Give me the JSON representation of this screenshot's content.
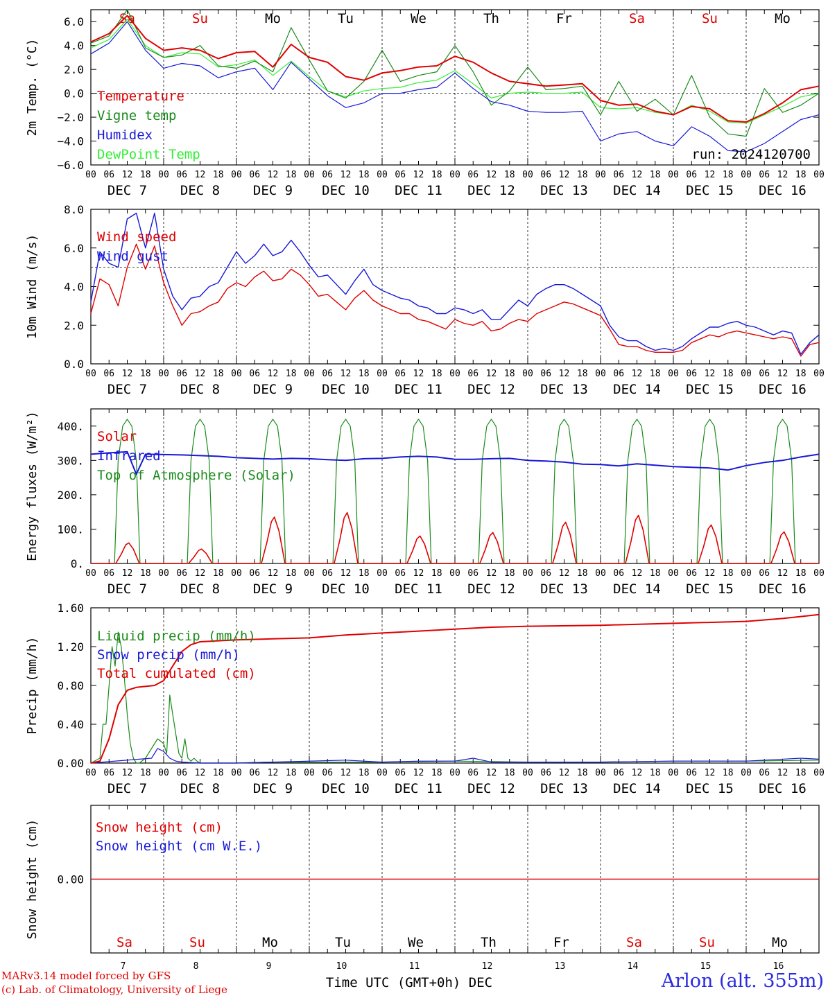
{
  "run_label": "run: 2024120700",
  "x_label": "Time UTC (GMT+0h)",
  "x_label_suffix": "DEC",
  "credits": [
    "MARv3.14 model forced by GFS",
    "(c) Lab. of Climatology, University of Liege"
  ],
  "station": "Arlon (alt. 355m)",
  "colors": {
    "red": "#e00000",
    "green": "#1a8a1a",
    "blue": "#1818d8",
    "lightgreen": "#33ee33",
    "weekend": "#e00000",
    "weekday": "#000000"
  },
  "chart_data": [
    {
      "type": "line",
      "ylabel": "2m Temp. (°C)",
      "ylim": [
        -6,
        7
      ],
      "yticks": [
        "6.0",
        "4.0",
        "2.0",
        "0.0",
        "−2.0",
        "−4.0",
        "−6.0"
      ],
      "yticks_values": [
        6,
        4,
        2,
        0,
        -2,
        -4,
        -6
      ],
      "ref_line": 0,
      "hour_ticks": [
        "00",
        "06",
        "12",
        "18",
        "00",
        "06",
        "12",
        "18",
        "00",
        "06",
        "12",
        "18",
        "00",
        "06",
        "12",
        "18",
        "00",
        "06",
        "12",
        "18",
        "00",
        "06",
        "12",
        "18",
        "00",
        "06",
        "12",
        "18",
        "00",
        "06",
        "12",
        "18",
        "00",
        "06",
        "12",
        "18",
        "00",
        "06",
        "12",
        "18",
        "00"
      ],
      "date_labels": [
        "DEC 7",
        "DEC 8",
        "DEC 9",
        "DEC 10",
        "DEC 11",
        "DEC 12",
        "DEC 13",
        "DEC 14",
        "DEC 15",
        "DEC 16"
      ],
      "day_names": [
        "Sa",
        "Su",
        "Mo",
        "Tu",
        "We",
        "Th",
        "Fr",
        "Sa",
        "Su",
        "Mo"
      ],
      "weekend": [
        true,
        true,
        false,
        false,
        false,
        false,
        false,
        true,
        true,
        false
      ],
      "x_hours": [
        0,
        6,
        12,
        18,
        24,
        30,
        36,
        42,
        48,
        54,
        60,
        66,
        72,
        78,
        84,
        90,
        96,
        102,
        108,
        114,
        120,
        126,
        132,
        138,
        144,
        150,
        156,
        162,
        168,
        174,
        180,
        186,
        192,
        198,
        204,
        210,
        216,
        222,
        228,
        234,
        240
      ],
      "series": [
        {
          "name": "Temperature",
          "color": "red",
          "values": [
            4.3,
            5.0,
            6.5,
            4.6,
            3.6,
            3.8,
            3.6,
            2.9,
            3.4,
            3.5,
            2.2,
            4.1,
            3.0,
            2.6,
            1.4,
            1.1,
            1.7,
            1.9,
            2.2,
            2.3,
            3.1,
            2.6,
            1.7,
            1.0,
            0.8,
            0.6,
            0.7,
            0.8,
            -0.6,
            -1.0,
            -0.9,
            -1.5,
            -1.8,
            -1.1,
            -1.3,
            -2.3,
            -2.4,
            -1.7,
            -0.8,
            0.3,
            0.6
          ]
        },
        {
          "name": "Vigne temp",
          "color": "green",
          "values": [
            4.2,
            4.8,
            7.0,
            3.8,
            3.0,
            3.2,
            4.0,
            2.3,
            2.1,
            2.7,
            1.8,
            5.5,
            2.8,
            0.2,
            -0.4,
            1.0,
            3.6,
            1.0,
            1.5,
            1.8,
            4.0,
            1.8,
            -1.0,
            0.2,
            2.2,
            0.3,
            0.4,
            0.6,
            -1.8,
            1.0,
            -1.5,
            -0.5,
            -1.8,
            1.5,
            -2.0,
            -3.4,
            -3.6,
            0.4,
            -1.6,
            -1.0,
            0.0
          ]
        },
        {
          "name": "Humidex",
          "color": "blue",
          "values": [
            3.3,
            4.2,
            6.0,
            3.6,
            2.1,
            2.5,
            2.3,
            1.3,
            1.8,
            2.1,
            0.3,
            2.6,
            1.2,
            -0.2,
            -1.2,
            -0.8,
            0.0,
            0.0,
            0.3,
            0.5,
            1.7,
            0.4,
            -0.7,
            -1.0,
            -1.5,
            -1.6,
            -1.6,
            -1.5,
            -4.0,
            -3.4,
            -3.2,
            -4.0,
            -4.4,
            -2.8,
            -3.6,
            -4.8,
            -4.9,
            -4.2,
            -3.2,
            -2.2,
            -1.8
          ]
        },
        {
          "name": "DewPoint Temp",
          "color": "lightgreen",
          "values": [
            3.8,
            4.5,
            6.2,
            4.0,
            3.0,
            3.4,
            3.3,
            2.2,
            2.4,
            2.8,
            1.5,
            2.7,
            1.4,
            0.2,
            -0.3,
            0.2,
            0.4,
            0.5,
            0.9,
            1.1,
            1.9,
            0.8,
            -0.4,
            0.0,
            0.1,
            0.0,
            0.0,
            0.1,
            -1.2,
            -1.3,
            -1.2,
            -1.6,
            -1.8,
            -1.0,
            -1.5,
            -2.4,
            -2.5,
            -1.8,
            -1.1,
            -0.3,
            0.0
          ]
        }
      ]
    },
    {
      "type": "line",
      "ylabel": "10m Wind (m/s)",
      "ylim": [
        0,
        8
      ],
      "yticks": [
        "8.0",
        "6.0",
        "4.0",
        "2.0",
        "0.0"
      ],
      "yticks_values": [
        8,
        6,
        4,
        2,
        0
      ],
      "ref_line": 5,
      "x_hours": [
        0,
        3,
        6,
        9,
        12,
        15,
        18,
        21,
        24,
        27,
        30,
        33,
        36,
        39,
        42,
        45,
        48,
        51,
        54,
        57,
        60,
        63,
        66,
        69,
        72,
        75,
        78,
        81,
        84,
        87,
        90,
        93,
        96,
        99,
        102,
        105,
        108,
        111,
        114,
        117,
        120,
        123,
        126,
        129,
        132,
        135,
        138,
        141,
        144,
        147,
        150,
        153,
        156,
        159,
        162,
        165,
        168,
        171,
        174,
        177,
        180,
        183,
        186,
        189,
        192,
        195,
        198,
        201,
        204,
        207,
        210,
        213,
        216,
        219,
        222,
        225,
        228,
        231,
        234,
        237,
        240
      ],
      "series": [
        {
          "name": "Wind speed",
          "color": "red",
          "values": [
            2.6,
            4.4,
            4.1,
            3.0,
            5.0,
            6.2,
            4.9,
            6.1,
            4.2,
            3.0,
            2.0,
            2.6,
            2.7,
            3.0,
            3.2,
            3.9,
            4.2,
            4.0,
            4.5,
            4.8,
            4.3,
            4.4,
            4.9,
            4.6,
            4.1,
            3.5,
            3.6,
            3.2,
            2.8,
            3.4,
            3.8,
            3.3,
            3.0,
            2.8,
            2.6,
            2.6,
            2.3,
            2.2,
            2.0,
            1.8,
            2.3,
            2.1,
            2.0,
            2.2,
            1.7,
            1.8,
            2.1,
            2.3,
            2.2,
            2.6,
            2.8,
            3.0,
            3.2,
            3.1,
            2.9,
            2.7,
            2.5,
            1.8,
            1.0,
            0.9,
            0.9,
            0.7,
            0.6,
            0.6,
            0.6,
            0.7,
            1.1,
            1.3,
            1.5,
            1.4,
            1.6,
            1.7,
            1.6,
            1.5,
            1.4,
            1.3,
            1.4,
            1.3,
            0.4,
            1.0,
            1.1
          ]
        },
        {
          "name": "Wind gust",
          "color": "blue",
          "values": [
            3.2,
            5.8,
            5.2,
            5.0,
            7.5,
            7.8,
            6.0,
            7.8,
            4.9,
            3.5,
            2.8,
            3.4,
            3.5,
            4.0,
            4.2,
            5.0,
            5.8,
            5.2,
            5.6,
            6.2,
            5.6,
            5.8,
            6.4,
            5.8,
            5.1,
            4.5,
            4.6,
            4.1,
            3.6,
            4.3,
            4.9,
            4.1,
            3.8,
            3.6,
            3.4,
            3.3,
            3.0,
            2.9,
            2.6,
            2.6,
            2.9,
            2.8,
            2.6,
            2.8,
            2.3,
            2.3,
            2.8,
            3.3,
            3.0,
            3.6,
            3.9,
            4.1,
            4.1,
            3.9,
            3.6,
            3.3,
            3.0,
            2.0,
            1.4,
            1.2,
            1.2,
            0.9,
            0.7,
            0.8,
            0.7,
            0.9,
            1.3,
            1.6,
            1.9,
            1.9,
            2.1,
            2.2,
            2.0,
            1.9,
            1.7,
            1.5,
            1.7,
            1.6,
            0.5,
            1.1,
            1.5
          ]
        }
      ]
    },
    {
      "type": "line",
      "ylabel": "Energy fluxes (W/m²)",
      "ylim": [
        0,
        450
      ],
      "yticks": [
        "400.",
        "300.",
        "200.",
        "100.",
        "0."
      ],
      "yticks_values": [
        400,
        300,
        200,
        100,
        0
      ],
      "ref_line": null,
      "solar_peaks": [
        60,
        42,
        135,
        148,
        80,
        90,
        120,
        140,
        112,
        92
      ],
      "toa_peak": 420,
      "series": [
        {
          "name": "Solar",
          "color": "red",
          "values": [
            60,
            42,
            135,
            148,
            80,
            90,
            120,
            140,
            112,
            92
          ]
        },
        {
          "name": "Infrared",
          "color": "blue",
          "x_hours": [
            0,
            6,
            12,
            15,
            18,
            24,
            30,
            36,
            42,
            48,
            54,
            60,
            66,
            72,
            78,
            84,
            90,
            96,
            102,
            108,
            114,
            120,
            126,
            132,
            138,
            144,
            150,
            156,
            162,
            168,
            174,
            180,
            186,
            192,
            198,
            204,
            210,
            216,
            222,
            228,
            234,
            240
          ],
          "values": [
            318,
            322,
            325,
            260,
            318,
            317,
            316,
            314,
            312,
            308,
            306,
            304,
            306,
            305,
            302,
            300,
            305,
            306,
            310,
            312,
            310,
            303,
            303,
            305,
            306,
            300,
            298,
            295,
            289,
            288,
            284,
            290,
            286,
            282,
            280,
            278,
            272,
            285,
            294,
            300,
            310,
            318
          ]
        },
        {
          "name": "Top of Atmosphere (Solar)",
          "color": "green",
          "values": [
            420,
            420,
            420,
            420,
            420,
            420,
            420,
            420,
            420,
            420
          ]
        }
      ]
    },
    {
      "type": "line",
      "ylabel": "Precip (mm/h)",
      "ylim": [
        0,
        1.6
      ],
      "yticks": [
        "1.60",
        "1.20",
        "0.80",
        "0.40",
        "0.00"
      ],
      "yticks_values": [
        1.6,
        1.2,
        0.8,
        0.4,
        0
      ],
      "ref_line": null,
      "series": [
        {
          "name": "Liquid precip (mm/h)",
          "color": "green",
          "x_hours": [
            0,
            3,
            4,
            5,
            6,
            7,
            8,
            9,
            10,
            11,
            12,
            13,
            14,
            15,
            16,
            18,
            20,
            22,
            24,
            25,
            26,
            27,
            28,
            29,
            30,
            31,
            32,
            33,
            34,
            35,
            36,
            37,
            38,
            40,
            42,
            44,
            48,
            60,
            72,
            96,
            120,
            144,
            168,
            192,
            216,
            240
          ],
          "values": [
            0,
            0.05,
            0.4,
            0.4,
            0.8,
            1.2,
            1.0,
            1.35,
            1.2,
            0.9,
            0.5,
            0.2,
            0.05,
            0,
            0,
            0.05,
            0.15,
            0.25,
            0.2,
            0.1,
            0.7,
            0.5,
            0.3,
            0.1,
            0.05,
            0.25,
            0.05,
            0.02,
            0.05,
            0.02,
            0,
            0,
            0,
            0,
            0,
            0,
            0,
            0.01,
            0.01,
            0.01,
            0.02,
            0.01,
            0.01,
            0.02,
            0.02,
            0.03
          ]
        },
        {
          "name": "Snow precip (mm/h)",
          "color": "blue",
          "x_hours": [
            0,
            20,
            22,
            24,
            26,
            28,
            30,
            36,
            48,
            60,
            84,
            96,
            108,
            120,
            126,
            132,
            144,
            168,
            192,
            216,
            234,
            240
          ],
          "values": [
            0,
            0.05,
            0.15,
            0.12,
            0.05,
            0.02,
            0.01,
            0,
            0,
            0.01,
            0.03,
            0.01,
            0.02,
            0.02,
            0.05,
            0.01,
            0.01,
            0.01,
            0.02,
            0.02,
            0.05,
            0.04
          ]
        },
        {
          "name": "Total cumulated (cm)",
          "color": "red",
          "x_hours": [
            0,
            3,
            6,
            9,
            12,
            15,
            18,
            21,
            24,
            27,
            30,
            33,
            36,
            48,
            60,
            72,
            84,
            96,
            108,
            120,
            132,
            144,
            168,
            192,
            216,
            228,
            240
          ],
          "values": [
            0,
            0.02,
            0.25,
            0.6,
            0.75,
            0.78,
            0.79,
            0.8,
            0.85,
            1.0,
            1.15,
            1.22,
            1.25,
            1.27,
            1.28,
            1.29,
            1.32,
            1.34,
            1.36,
            1.38,
            1.4,
            1.41,
            1.42,
            1.44,
            1.46,
            1.49,
            1.53
          ]
        }
      ]
    },
    {
      "type": "line",
      "ylabel": "Snow height (cm)",
      "ylim": [
        -1,
        1
      ],
      "yticks": [
        "0.00"
      ],
      "yticks_values": [
        0
      ],
      "ref_line": null,
      "day_numbers": [
        "7",
        "8",
        "9",
        "10",
        "11",
        "12",
        "13",
        "14",
        "15",
        "16"
      ],
      "series": [
        {
          "name": "Snow height (cm)",
          "color": "red",
          "x_hours": [
            0,
            240
          ],
          "values": [
            0,
            0
          ]
        },
        {
          "name": "Snow height (cm W.E.)",
          "color": "blue",
          "x_hours": [
            0,
            240
          ],
          "values": [
            0,
            0
          ]
        }
      ]
    }
  ]
}
